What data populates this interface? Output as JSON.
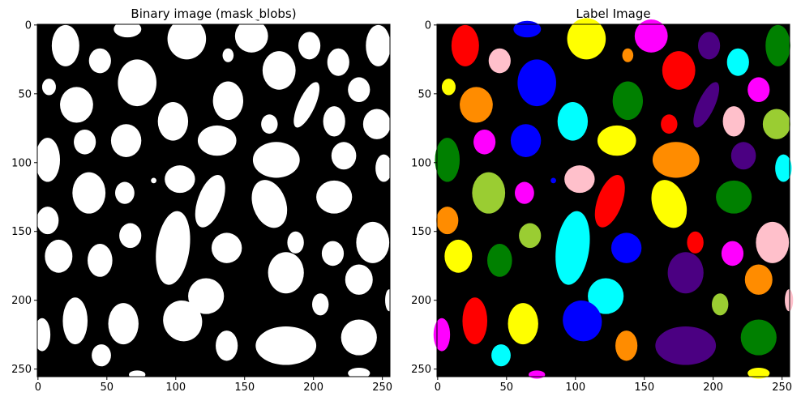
{
  "chart_data": [
    {
      "type": "image",
      "title": "Binary image (mask_blobs)",
      "xlim": [
        -0.5,
        255.5
      ],
      "ylim": [
        255.5,
        -0.5
      ],
      "xticks": [
        0,
        50,
        100,
        150,
        200,
        250
      ],
      "yticks": [
        0,
        50,
        100,
        150,
        200,
        250
      ],
      "colormap": "binary"
    },
    {
      "type": "image",
      "title": "Label Image",
      "xlim": [
        -0.5,
        255.5
      ],
      "ylim": [
        255.5,
        -0.5
      ],
      "xticks": [
        0,
        50,
        100,
        150,
        200,
        250
      ],
      "yticks": [
        0,
        50,
        100,
        150,
        200,
        250
      ],
      "colormap": "labels"
    }
  ]
}
